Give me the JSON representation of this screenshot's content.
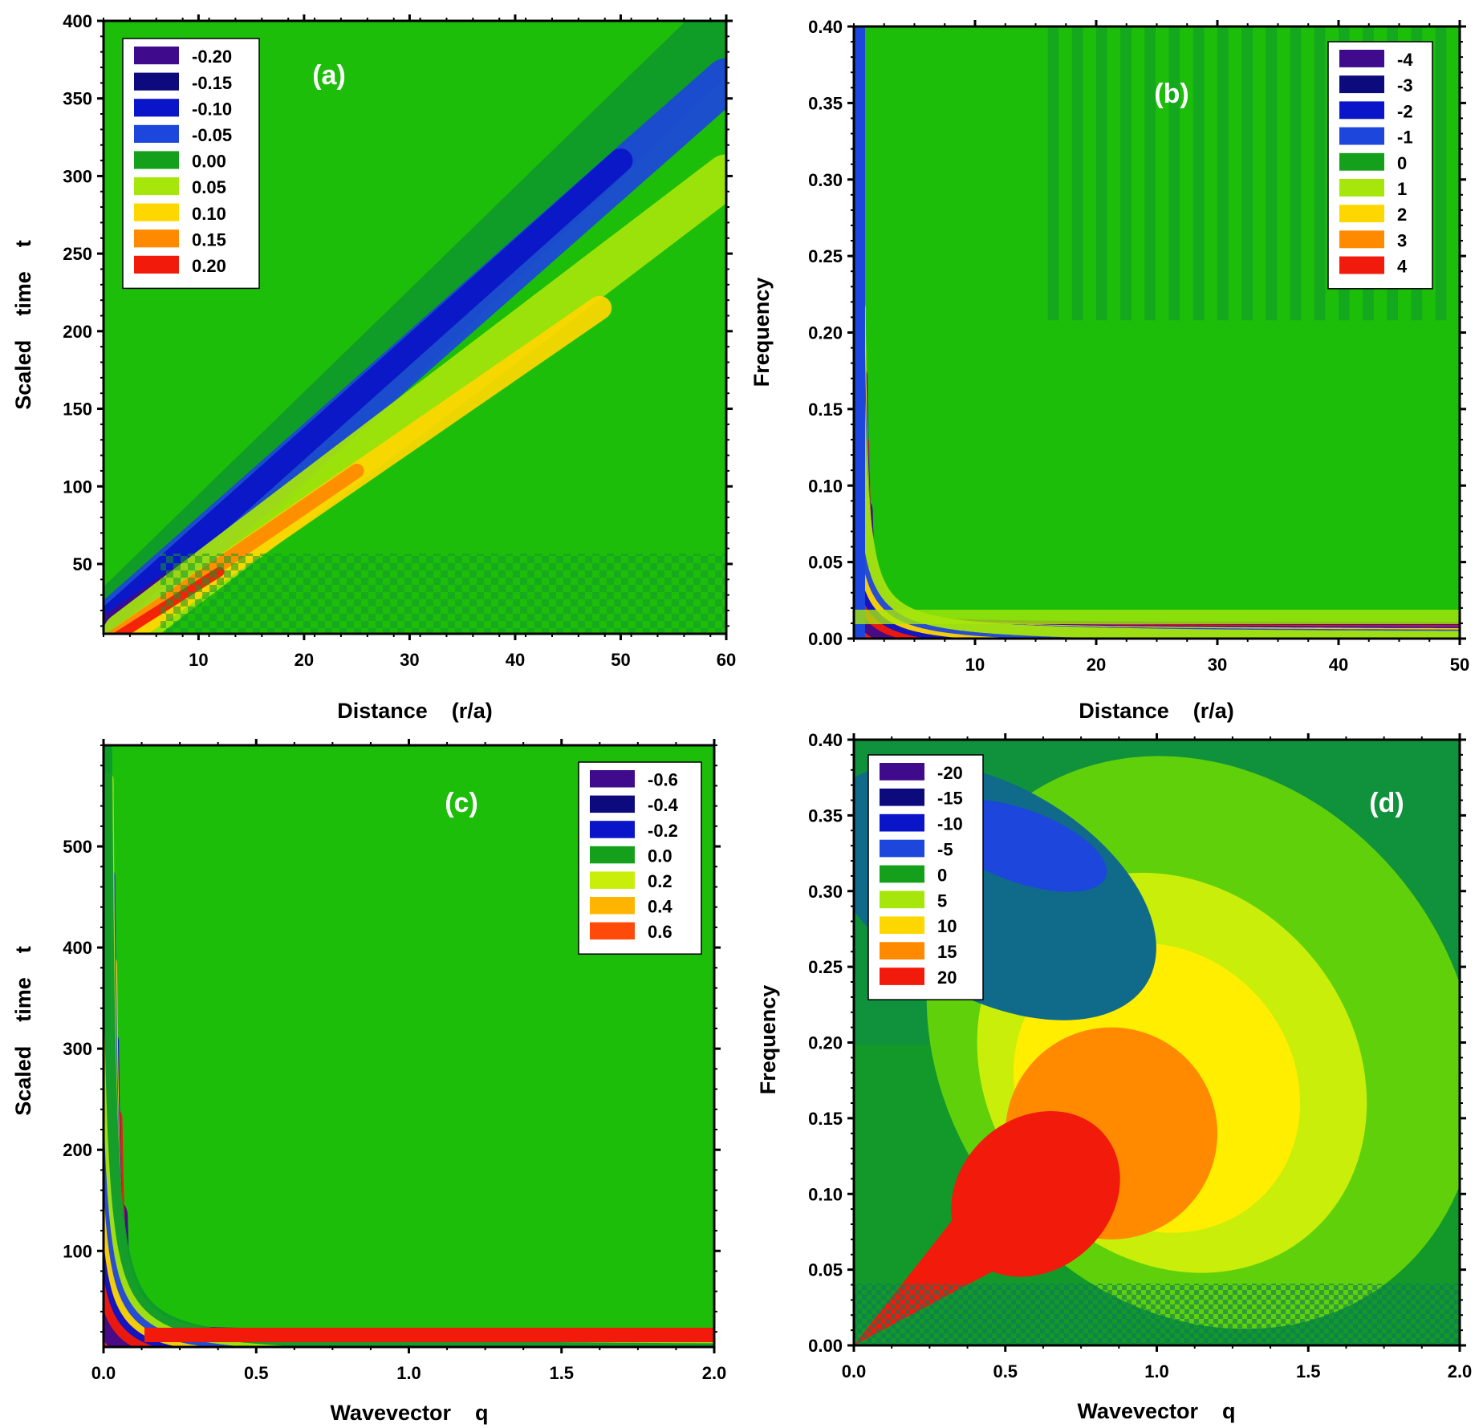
{
  "figure": {
    "description_free": true
  },
  "chart_data": [
    {
      "id": "a",
      "type": "heatmap",
      "panel_label": "(a)",
      "xlabel": "Distance    (r/a)",
      "ylabel": "Scaled    time    t",
      "xlim": [
        1,
        60
      ],
      "ylim": [
        5,
        400
      ],
      "xticks": [
        10,
        20,
        30,
        40,
        50,
        60
      ],
      "xtick_labels": [
        "10",
        "20",
        "30",
        "40",
        "50",
        "60"
      ],
      "yticks": [
        50,
        100,
        150,
        200,
        250,
        300,
        350,
        400
      ],
      "ytick_labels": [
        "50",
        "100",
        "150",
        "200",
        "250",
        "300",
        "350",
        "400"
      ],
      "legend": {
        "position": "top-left",
        "levels": [
          "-0.20",
          "-0.15",
          "-0.10",
          "-0.05",
          "0.00",
          "0.05",
          "0.10",
          "0.15",
          "0.20"
        ],
        "colors": [
          "#3f0a8c",
          "#0c0a7c",
          "#0a14c8",
          "#1c46dc",
          "#14a01a",
          "#a6e60a",
          "#ffd700",
          "#ff8a00",
          "#f21a0a"
        ]
      },
      "background": "#1cbe0a",
      "bands": [
        {
          "value": 0.0,
          "color": "#0e9a2a",
          "points": [
            [
              1,
              5
            ],
            [
              60,
              395
            ]
          ],
          "width": 14
        },
        {
          "value": -0.05,
          "color": "#1c46dc",
          "points": [
            [
              1,
              8
            ],
            [
              60,
              362
            ]
          ],
          "width": 9
        },
        {
          "value": -0.1,
          "color": "#0a14c8",
          "points": [
            [
              1,
              12
            ],
            [
              50,
              310
            ]
          ],
          "width": 5
        },
        {
          "value": -0.2,
          "color": "#3f0a8c",
          "points": [
            [
              1,
              13
            ],
            [
              10,
              55
            ]
          ],
          "width": 2
        },
        {
          "value": 0.05,
          "color": "#a6e60a",
          "points": [
            [
              3,
              5
            ],
            [
              60,
              300
            ]
          ],
          "width": 9
        },
        {
          "value": 0.1,
          "color": "#ffd700",
          "points": [
            [
              3,
              4
            ],
            [
              48,
              215
            ]
          ],
          "width": 5
        },
        {
          "value": 0.15,
          "color": "#ff8a00",
          "points": [
            [
              2,
              3
            ],
            [
              25,
              110
            ]
          ],
          "width": 3
        },
        {
          "value": 0.2,
          "color": "#f21a0a",
          "points": [
            [
              2,
              2
            ],
            [
              12,
              45
            ]
          ],
          "width": 2
        }
      ]
    },
    {
      "id": "b",
      "type": "heatmap",
      "panel_label": "(b)",
      "xlabel": "Distance    (r/a)",
      "ylabel": "Frequency",
      "xlim": [
        0,
        50
      ],
      "ylim": [
        0,
        0.4
      ],
      "xticks": [
        10,
        20,
        30,
        40,
        50
      ],
      "xtick_labels": [
        "10",
        "20",
        "30",
        "40",
        "50"
      ],
      "yticks": [
        0.0,
        0.05,
        0.1,
        0.15,
        0.2,
        0.25,
        0.3,
        0.35,
        0.4
      ],
      "ytick_labels": [
        "0.00",
        "0.05",
        "0.10",
        "0.15",
        "0.20",
        "0.25",
        "0.30",
        "0.35",
        "0.40"
      ],
      "legend": {
        "position": "top-right",
        "levels": [
          "-4",
          "-3",
          "-2",
          "-1",
          "0",
          "1",
          "2",
          "3",
          "4"
        ],
        "colors": [
          "#3f0a8c",
          "#0c0a7c",
          "#0a14c8",
          "#1c46dc",
          "#14a01a",
          "#a6e60a",
          "#ffd700",
          "#ff8a00",
          "#f21a0a"
        ]
      },
      "background": "#1cbe0a",
      "hyperbola_bands": [
        {
          "k": 0.55,
          "color": "#f21a0a",
          "width": 16
        },
        {
          "k": 0.95,
          "color": "#3f0a8c",
          "width": 18
        },
        {
          "k": 1.45,
          "color": "#f21a0a",
          "width": 14
        },
        {
          "k": 1.95,
          "color": "#0a14c8",
          "width": 12
        },
        {
          "k": 2.45,
          "color": "#ffd700",
          "width": 10
        },
        {
          "k": 2.95,
          "color": "#1c46dc",
          "width": 8
        },
        {
          "k": 3.5,
          "color": "#a6e60a",
          "width": 6
        }
      ]
    },
    {
      "id": "c",
      "type": "heatmap",
      "panel_label": "(c)",
      "xlabel": "Wavevector    q",
      "ylabel": "Scaled    time    t",
      "xlim": [
        0,
        2
      ],
      "ylim": [
        5,
        600
      ],
      "xticks": [
        0.0,
        0.5,
        1.0,
        1.5,
        2.0
      ],
      "xtick_labels": [
        "0.0",
        "0.5",
        "1.0",
        "1.5",
        "2.0"
      ],
      "yticks": [
        100,
        200,
        300,
        400,
        500
      ],
      "ytick_labels": [
        "100",
        "200",
        "300",
        "400",
        "500"
      ],
      "legend": {
        "position": "top-right",
        "levels": [
          "-0.6",
          "-0.4",
          "-0.2",
          "0.0",
          "0.2",
          "0.4",
          "0.6"
        ],
        "colors": [
          "#3f0a8c",
          "#0c0a7c",
          "#0a14c8",
          "#14a01a",
          "#c8ee0a",
          "#ffb400",
          "#ff4a0a"
        ]
      },
      "background": "#1cbe0a",
      "hyperbola_bands": [
        {
          "k": 8,
          "color": "#f21a0a",
          "width": 12
        },
        {
          "k": 28,
          "color": "#3f0a8c",
          "width": 24
        },
        {
          "k": 48,
          "color": "#f21a0a",
          "width": 18
        },
        {
          "k": 64,
          "color": "#0a14c8",
          "width": 14
        },
        {
          "k": 80,
          "color": "#ffd700",
          "width": 12
        },
        {
          "k": 98,
          "color": "#1c46dc",
          "width": 10
        },
        {
          "k": 118,
          "color": "#a6e60a",
          "width": 8
        },
        {
          "k": 140,
          "color": "#0e9a2a",
          "width": 6
        }
      ]
    },
    {
      "id": "d",
      "type": "heatmap",
      "panel_label": "(d)",
      "xlabel": "Wavevector    q",
      "ylabel": "Frequency",
      "xlim": [
        0,
        2
      ],
      "ylim": [
        0,
        0.4
      ],
      "xticks": [
        0.0,
        0.5,
        1.0,
        1.5,
        2.0
      ],
      "xtick_labels": [
        "0.0",
        "0.5",
        "1.0",
        "1.5",
        "2.0"
      ],
      "yticks": [
        0.0,
        0.05,
        0.1,
        0.15,
        0.2,
        0.25,
        0.3,
        0.35,
        0.4
      ],
      "ytick_labels": [
        "0.00",
        "0.05",
        "0.10",
        "0.15",
        "0.20",
        "0.25",
        "0.30",
        "0.35",
        "0.40"
      ],
      "legend": {
        "position": "top-left",
        "levels": [
          "-20",
          "-15",
          "-10",
          "-5",
          "0",
          "5",
          "10",
          "15",
          "20"
        ],
        "colors": [
          "#3f0a8c",
          "#0c0a7c",
          "#0a14c8",
          "#1c46dc",
          "#14a01a",
          "#a6e60a",
          "#ffd700",
          "#ff8a00",
          "#f21a0a"
        ]
      },
      "background": "#12992a",
      "blobs": [
        {
          "cx": 1.15,
          "cy": 0.2,
          "rx": 0.85,
          "ry": 0.2,
          "rot": -38,
          "color": "#60d00a"
        },
        {
          "cx": 1.05,
          "cy": 0.18,
          "rx": 0.6,
          "ry": 0.14,
          "rot": -40,
          "color": "#c8ee0a"
        },
        {
          "cx": 1.0,
          "cy": 0.17,
          "rx": 0.45,
          "ry": 0.1,
          "rot": -42,
          "color": "#ffee00"
        },
        {
          "cx": 0.85,
          "cy": 0.14,
          "rx": 0.35,
          "ry": 0.07,
          "rot": -42,
          "color": "#ff8a00"
        },
        {
          "cx": 0.6,
          "cy": 0.1,
          "rx": 0.3,
          "ry": 0.05,
          "rot": -42,
          "color": "#f21a0a"
        },
        {
          "cx": 0.45,
          "cy": 0.3,
          "rx": 0.35,
          "ry": 0.12,
          "rot": -60,
          "color": "#106a8a"
        },
        {
          "cx": 0.55,
          "cy": 0.33,
          "rx": 0.12,
          "ry": 0.06,
          "rot": -70,
          "color": "#1c46dc"
        }
      ]
    }
  ]
}
